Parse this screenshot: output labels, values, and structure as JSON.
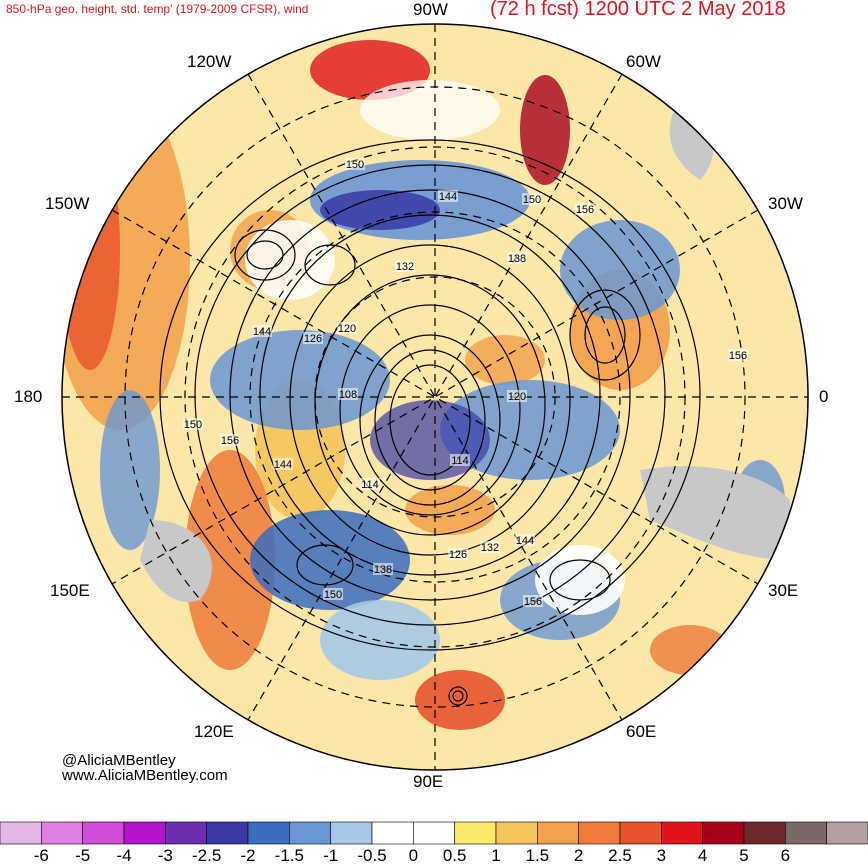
{
  "header": {
    "left": "850-hPa geo. height, std. temp' (1979-2009 CFSR), wind",
    "right": "(72 h fcst) 1200 UTC 2 May 2018"
  },
  "longitude_labels": {
    "n90w": "90W",
    "n120w": "120W",
    "n60w": "60W",
    "n150w": "150W",
    "n30w": "30W",
    "n180": "180",
    "n0": "0",
    "n150e": "150E",
    "n30e": "30E",
    "n120e": "120E",
    "n60e": "60E",
    "n90e": "90E"
  },
  "contour_labels": [
    "150",
    "144",
    "150",
    "156",
    "138",
    "132",
    "144",
    "126",
    "120",
    "108",
    "120",
    "150",
    "156",
    "144",
    "114",
    "114",
    "132",
    "126",
    "144",
    "138",
    "150",
    "156",
    "156"
  ],
  "credits": {
    "line1": "@AliciaMBentley",
    "line2": "www.AliciaMBentley.com"
  },
  "colorbar": {
    "colors": [
      "#e6b6e8",
      "#e07ee2",
      "#d14cd9",
      "#b314cc",
      "#6e2eb0",
      "#3a3aa6",
      "#3a6cc0",
      "#6a96d4",
      "#a6c8e6",
      "#ffffff",
      "#ffffff",
      "#fce86a",
      "#f5c45a",
      "#f2a04a",
      "#ef7a3a",
      "#e8532c",
      "#e0141c",
      "#a8001a",
      "#6e2a2a",
      "#7a6a6a",
      "#b0a0a0"
    ],
    "ticks": [
      "-6",
      "-5",
      "-4",
      "-3",
      "-2.5",
      "-2",
      "-1.5",
      "-1",
      "-0.5",
      "0",
      "0.5",
      "1",
      "1.5",
      "2",
      "2.5",
      "3",
      "4",
      "5",
      "6"
    ]
  }
}
